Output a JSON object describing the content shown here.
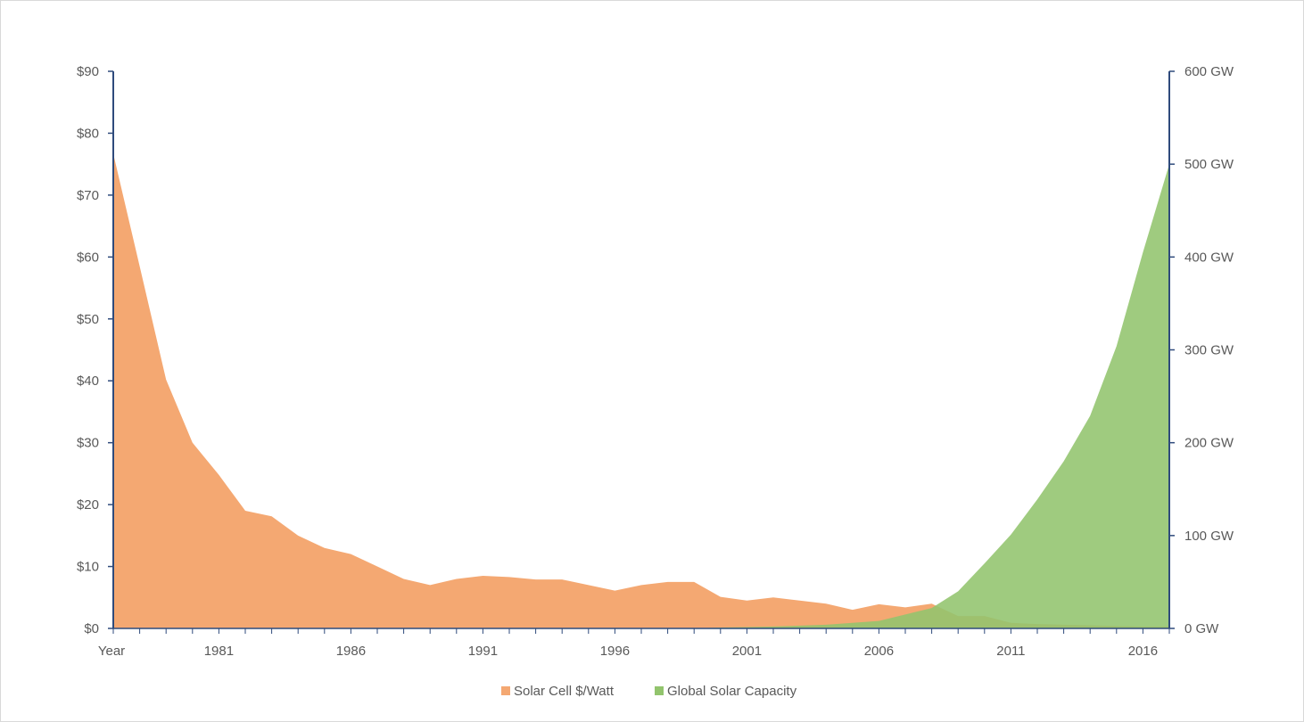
{
  "chart_data": {
    "type": "area",
    "title": "",
    "xlabel": "Year",
    "x": [
      1977,
      1978,
      1979,
      1980,
      1981,
      1982,
      1983,
      1984,
      1985,
      1986,
      1987,
      1988,
      1989,
      1990,
      1991,
      1992,
      1993,
      1994,
      1995,
      1996,
      1997,
      1998,
      1999,
      2000,
      2001,
      2002,
      2003,
      2004,
      2005,
      2006,
      2007,
      2008,
      2009,
      2010,
      2011,
      2012,
      2013,
      2014,
      2015,
      2016,
      2017
    ],
    "x_tick_labels": [
      "1981",
      "1986",
      "1991",
      "1996",
      "2001",
      "2006",
      "2011",
      "2016"
    ],
    "x_tick_values": [
      1981,
      1986,
      1991,
      1996,
      2001,
      2006,
      2011,
      2016
    ],
    "y_left": {
      "ylim": [
        0,
        90
      ],
      "tick_values": [
        0,
        10,
        20,
        30,
        40,
        50,
        60,
        70,
        80,
        90
      ],
      "tick_labels": [
        "$0",
        "$10",
        "$20",
        "$30",
        "$40",
        "$50",
        "$60",
        "$70",
        "$80",
        "$90"
      ]
    },
    "y_right": {
      "ylim": [
        0,
        600
      ],
      "tick_values": [
        0,
        100,
        200,
        300,
        400,
        500,
        600
      ],
      "tick_labels": [
        "0 GW",
        "100 GW",
        "200 GW",
        "300 GW",
        "400 GW",
        "500 GW",
        "600 GW"
      ]
    },
    "series": [
      {
        "name": "Solar Cell $/Watt",
        "axis": "left",
        "color": "#f4a872",
        "values": [
          76.7,
          58.5,
          40.2,
          30.0,
          24.8,
          19.0,
          18.1,
          15.0,
          13.0,
          12.0,
          10.0,
          8.0,
          7.0,
          8.0,
          8.5,
          8.3,
          7.9,
          7.9,
          7.0,
          6.1,
          7.0,
          7.5,
          7.5,
          5.1,
          4.5,
          5.0,
          4.5,
          4.0,
          3.0,
          3.9,
          3.4,
          4.0,
          2.0,
          2.0,
          0.9,
          0.7,
          0.6,
          0.5,
          0.4,
          0.3,
          0.3
        ]
      },
      {
        "name": "Global Solar Capacity",
        "axis": "right",
        "color": "#92c46d",
        "values": [
          0,
          0,
          0,
          0,
          0,
          0,
          0,
          0,
          0,
          0,
          0,
          0,
          0,
          0,
          0,
          0,
          0,
          0,
          0,
          0,
          0,
          0,
          0,
          1,
          1.5,
          2,
          3,
          4,
          6,
          8,
          15,
          22,
          40,
          70,
          101,
          139,
          180,
          229,
          304,
          405,
          500
        ]
      }
    ],
    "legend_position": "bottom",
    "grid": false
  }
}
